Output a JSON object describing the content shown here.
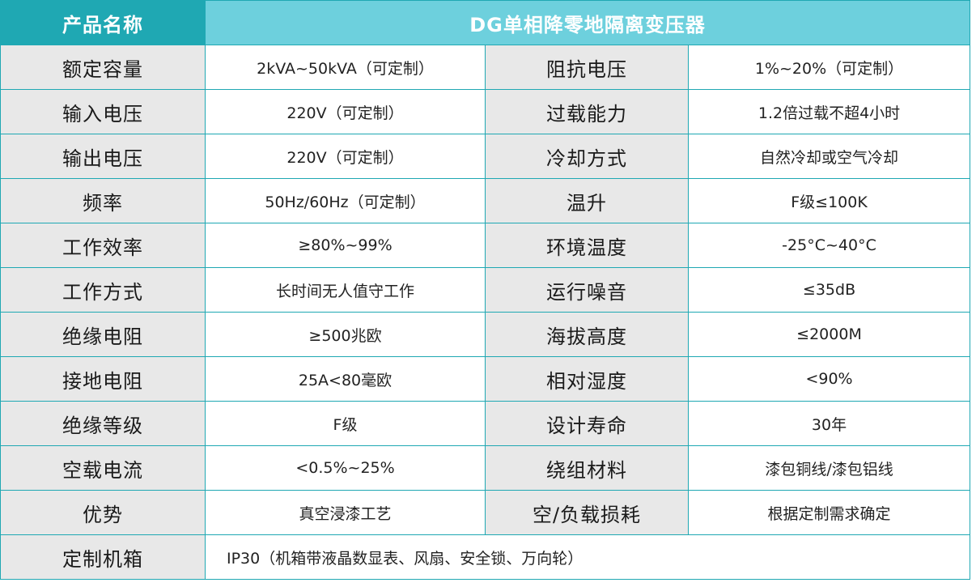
{
  "header": {
    "label": "产品名称",
    "title": "DG单相降零地隔离变压器"
  },
  "rows": [
    {
      "l1": "额定容量",
      "v1": "2kVA~50kVA（可定制）",
      "l2": "阻抗电压",
      "v2": "1%~20%（可定制）"
    },
    {
      "l1": "输入电压",
      "v1": "220V（可定制）",
      "l2": "过载能力",
      "v2": "1.2倍过载不超4小时"
    },
    {
      "l1": "输出电压",
      "v1": "220V（可定制）",
      "l2": "冷却方式",
      "v2": "自然冷却或空气冷却"
    },
    {
      "l1": "频率",
      "v1": "50Hz/60Hz（可定制）",
      "l2": "温升",
      "v2": "F级≤100K"
    },
    {
      "l1": "工作效率",
      "v1": "≥80%~99%",
      "l2": "环境温度",
      "v2": "-25°C~40°C"
    },
    {
      "l1": "工作方式",
      "v1": "长时间无人值守工作",
      "l2": "运行噪音",
      "v2": "≤35dB"
    },
    {
      "l1": "绝缘电阻",
      "v1": "≥500兆欧",
      "l2": "海拔高度",
      "v2": "≤2000M"
    },
    {
      "l1": "接地电阻",
      "v1": "25A<80毫欧",
      "l2": "相对湿度",
      "v2": "<90%"
    },
    {
      "l1": "绝缘等级",
      "v1": "F级",
      "l2": "设计寿命",
      "v2": "30年"
    },
    {
      "l1": "空载电流",
      "v1": "<0.5%~25%",
      "l2": "绕组材料",
      "v2": "漆包铜线/漆包铝线"
    },
    {
      "l1": "优势",
      "v1": "真空浸漆工艺",
      "l2": "空/负载损耗",
      "v2": "根据定制需求确定"
    }
  ],
  "last_row": {
    "label": "定制机箱",
    "value": "IP30（机箱带液晶数显表、风扇、安全锁、万向轮）"
  },
  "colors": {
    "border": "#1fa8b3",
    "header_label_bg": "#1fa8b3",
    "header_title_bg": "#6dd0dd",
    "label_bg": "#e8e8e8"
  }
}
